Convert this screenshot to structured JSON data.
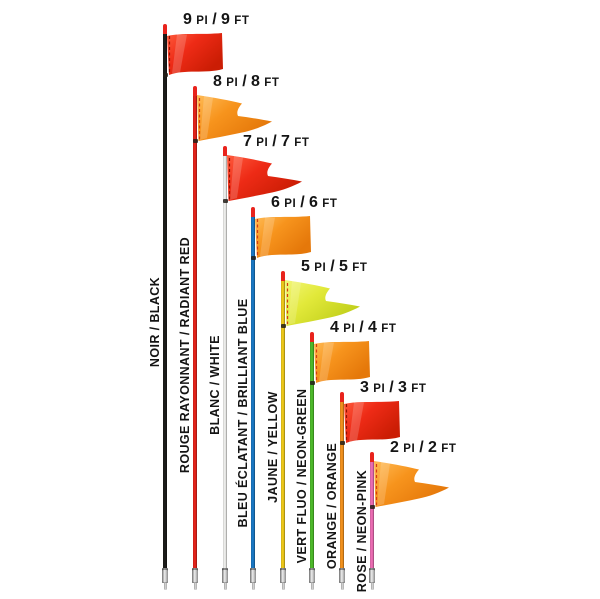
{
  "page": {
    "background": "#ffffff"
  },
  "colors": {
    "pole_tip": "#e8231c",
    "flag_joint": "#231e19",
    "ferrule": "#9a9a9a",
    "ferrule_tip": "#c6c6c6",
    "label_text": "#141414"
  },
  "flags": [
    {
      "feet": 9,
      "size_label": "9 PI / 9 FT",
      "color_label": "NOIR / BLACK",
      "pole_color": "#1d1d1b",
      "flag_type": "rectangle",
      "flag_color": "#ee2b16",
      "flag_color_light": "#ff5a3c",
      "flag_color_dark": "#cb1d04",
      "stitch_color": "#8e1200"
    },
    {
      "feet": 8,
      "size_label": "8 PI / 8 FT",
      "color_label": "ROUGE RAYONNANT / RADIANT RED",
      "pole_color": "#e8241c",
      "flag_type": "pennant",
      "flag_color": "#f7941d",
      "flag_color_light": "#ffbb55",
      "flag_color_dark": "#e5780a",
      "stitch_color": "#d63a12"
    },
    {
      "feet": 7,
      "size_label": "7 PI / 7 FT",
      "color_label": "BLANC / WHITE",
      "pole_color": "#f1f1ef",
      "flag_type": "pennant",
      "flag_color": "#ee2b16",
      "flag_color_light": "#ff5a3c",
      "flag_color_dark": "#cb1d04",
      "stitch_color": "#8e1200"
    },
    {
      "feet": 6,
      "size_label": "6 PI / 6 FT",
      "color_label": "BLEU ÉCLATANT / BRILLIANT BLUE",
      "pole_color": "#1b7ac7",
      "flag_type": "rectangle",
      "flag_color": "#f7941d",
      "flag_color_light": "#ffbb55",
      "flag_color_dark": "#e5780a",
      "stitch_color": "#d63a12"
    },
    {
      "feet": 5,
      "size_label": "5 PI / 5 FT",
      "color_label": "JAUNE / YELLOW",
      "pole_color": "#f2cc1b",
      "flag_type": "pennant",
      "flag_color": "#e2e93a",
      "flag_color_light": "#f2f677",
      "flag_color_dark": "#c2d01c",
      "stitch_color": "#d63a12"
    },
    {
      "feet": 4,
      "size_label": "4 PI / 4 FT",
      "color_label": "VERT FLUO / NEON-GREEN",
      "pole_color": "#4fbe2b",
      "flag_type": "rectangle",
      "flag_color": "#f7941d",
      "flag_color_light": "#ffbb55",
      "flag_color_dark": "#e5780a",
      "stitch_color": "#d63a12"
    },
    {
      "feet": 3,
      "size_label": "3 PI / 3 FT",
      "color_label": "ORANGE / ORANGE",
      "pole_color": "#f7941e",
      "flag_type": "rectangle",
      "flag_color": "#ee2b16",
      "flag_color_light": "#ff5a3c",
      "flag_color_dark": "#cb1d04",
      "stitch_color": "#8e1200"
    },
    {
      "feet": 2,
      "size_label": "2 PI / 2 FT",
      "color_label": "ROSE / NEON-PINK",
      "pole_color": "#f06fb7",
      "flag_type": "pennant",
      "flag_color": "#f7941d",
      "flag_color_light": "#ffbb55",
      "flag_color_dark": "#e5780a",
      "stitch_color": "#d63a12"
    }
  ]
}
